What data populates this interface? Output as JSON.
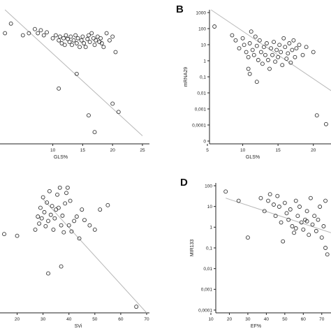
{
  "chart_data": [
    {
      "panel": "",
      "type": "scatter",
      "xlabel": "GLS%",
      "ylabel": "",
      "xlim": [
        0,
        25
      ],
      "ylim": [
        1e-05,
        1000
      ],
      "ylog": true,
      "xticks": [
        "10",
        "15",
        "20",
        "25"
      ],
      "yticks": [],
      "points": [
        [
          0.5,
          100
        ],
        [
          2,
          40
        ],
        [
          3,
          150
        ],
        [
          5,
          30
        ],
        [
          6,
          40
        ],
        [
          7,
          70
        ],
        [
          7.5,
          40
        ],
        [
          8,
          60
        ],
        [
          8.5,
          30
        ],
        [
          9,
          45
        ],
        [
          10,
          20
        ],
        [
          10.5,
          30
        ],
        [
          11,
          15
        ],
        [
          11.2,
          25
        ],
        [
          11.5,
          10
        ],
        [
          11.8,
          20
        ],
        [
          12,
          8
        ],
        [
          12.2,
          30
        ],
        [
          12.5,
          18
        ],
        [
          12.8,
          12
        ],
        [
          13,
          25
        ],
        [
          13.2,
          8
        ],
        [
          13.5,
          15
        ],
        [
          13.8,
          30
        ],
        [
          14,
          10
        ],
        [
          14.2,
          20
        ],
        [
          14.5,
          6
        ],
        [
          14.8,
          15
        ],
        [
          15,
          25
        ],
        [
          15.2,
          10
        ],
        [
          15.5,
          6
        ],
        [
          15.8,
          18
        ],
        [
          16,
          30
        ],
        [
          16.2,
          12
        ],
        [
          16.5,
          40
        ],
        [
          16.8,
          20
        ],
        [
          17,
          8
        ],
        [
          17.2,
          15
        ],
        [
          17.5,
          25
        ],
        [
          17.8,
          12
        ],
        [
          18,
          20
        ],
        [
          18.2,
          10
        ],
        [
          18.5,
          6
        ],
        [
          19,
          40
        ],
        [
          19.5,
          15
        ],
        [
          20,
          25
        ],
        [
          20.5,
          3
        ],
        [
          11,
          0.02
        ],
        [
          14,
          0.15
        ],
        [
          16,
          0.0005
        ],
        [
          17,
          5e-05
        ],
        [
          20,
          0.0025
        ],
        [
          21,
          0.0008
        ]
      ],
      "regression": [
        [
          2,
          1000
        ],
        [
          25,
          3e-05
        ]
      ]
    },
    {
      "panel": "B",
      "type": "scatter",
      "xlabel": "GLS%",
      "ylabel": "mRNA29",
      "xlim": [
        5,
        22.5
      ],
      "ylim": [
        1e-05,
        1000
      ],
      "ylog": true,
      "xticks": [
        "5",
        "10",
        "15",
        "20"
      ],
      "yticks": [
        "1000",
        "100",
        "10",
        "1",
        "0,1",
        "0,01",
        "0,001",
        "0,0001",
        "0"
      ],
      "points": [
        [
          6,
          100
        ],
        [
          8.5,
          30
        ],
        [
          9,
          15
        ],
        [
          9.5,
          5
        ],
        [
          10,
          20
        ],
        [
          10.2,
          8
        ],
        [
          10.5,
          3
        ],
        [
          10.8,
          1.5
        ],
        [
          11,
          10
        ],
        [
          11.2,
          50
        ],
        [
          11.4,
          4
        ],
        [
          11.6,
          2
        ],
        [
          11.8,
          25
        ],
        [
          12,
          7
        ],
        [
          12.2,
          1
        ],
        [
          12.4,
          15
        ],
        [
          12.6,
          3
        ],
        [
          12.8,
          0.6
        ],
        [
          13,
          6
        ],
        [
          13.2,
          2
        ],
        [
          13.4,
          10
        ],
        [
          13.6,
          1
        ],
        [
          13.8,
          0.3
        ],
        [
          14,
          5
        ],
        [
          14.2,
          2
        ],
        [
          14.4,
          12
        ],
        [
          14.6,
          0.8
        ],
        [
          14.8,
          4
        ],
        [
          15,
          1.5
        ],
        [
          15.2,
          8
        ],
        [
          15.4,
          3
        ],
        [
          15.6,
          0.5
        ],
        [
          15.8,
          20
        ],
        [
          16,
          6
        ],
        [
          16.2,
          1.2
        ],
        [
          16.4,
          2.5
        ],
        [
          16.6,
          10
        ],
        [
          16.8,
          0.7
        ],
        [
          17,
          4
        ],
        [
          17.2,
          15
        ],
        [
          17.4,
          1.5
        ],
        [
          17.6,
          5
        ],
        [
          18,
          8
        ],
        [
          18.5,
          2
        ],
        [
          19,
          6
        ],
        [
          20,
          3
        ],
        [
          11,
          0.15
        ],
        [
          12,
          0.05
        ],
        [
          10.8,
          0.3
        ],
        [
          20.5,
          0.0005
        ],
        [
          21.8,
          0.00015
        ]
      ],
      "regression": [
        [
          5.5,
          1000
        ],
        [
          22.5,
          0.015
        ]
      ]
    },
    {
      "panel": "",
      "type": "scatter",
      "xlabel": "SVi",
      "ylabel": "",
      "xlim": [
        15,
        70
      ],
      "ylim": [
        -1,
        14
      ],
      "ylog": false,
      "xticks": [
        "20",
        "30",
        "40",
        "50",
        "60",
        "70"
      ],
      "yticks": [],
      "points": [
        [
          15,
          8
        ],
        [
          20,
          7.8
        ],
        [
          27,
          8.5
        ],
        [
          28,
          10
        ],
        [
          28.5,
          9.2
        ],
        [
          29,
          11
        ],
        [
          29.5,
          9.8
        ],
        [
          30,
          12.2
        ],
        [
          30.5,
          10.5
        ],
        [
          31,
          8.9
        ],
        [
          31.5,
          11.6
        ],
        [
          32,
          9.5
        ],
        [
          32.5,
          12.9
        ],
        [
          33,
          10.2
        ],
        [
          33.5,
          11.2
        ],
        [
          34,
          8.5
        ],
        [
          34.5,
          9.8
        ],
        [
          35,
          10.8
        ],
        [
          35.5,
          12.5
        ],
        [
          36,
          11
        ],
        [
          36.5,
          13.3
        ],
        [
          37,
          9
        ],
        [
          37.5,
          10.1
        ],
        [
          38,
          8.2
        ],
        [
          38.5,
          11.5
        ],
        [
          39,
          12.7
        ],
        [
          39.5,
          13.3
        ],
        [
          40,
          9
        ],
        [
          40.5,
          11.8
        ],
        [
          41,
          8.3
        ],
        [
          42,
          9.5
        ],
        [
          43,
          10
        ],
        [
          44,
          7.5
        ],
        [
          45,
          10.8
        ],
        [
          46,
          9.6
        ],
        [
          48,
          9
        ],
        [
          50,
          8.5
        ],
        [
          52,
          10.8
        ],
        [
          55,
          11.3
        ],
        [
          32,
          3.5
        ],
        [
          37,
          4.3
        ],
        [
          66,
          -0.3
        ]
      ],
      "regression": [
        [
          30,
          12
        ],
        [
          70,
          -1
        ]
      ]
    },
    {
      "panel": "D",
      "type": "scatter",
      "xlabel": "EF%",
      "ylabel": "MIR133",
      "xlim": [
        10,
        75
      ],
      "ylim": [
        0.0001,
        100
      ],
      "ylog": true,
      "xticks": [
        "10",
        "20",
        "30",
        "40",
        "50",
        "60",
        "70"
      ],
      "yticks": [
        "100",
        "10",
        "1",
        "0,1",
        "0,01",
        "0,001",
        "0,0001"
      ],
      "points": [
        [
          18,
          40
        ],
        [
          25,
          15
        ],
        [
          30,
          0.3
        ],
        [
          37,
          20
        ],
        [
          39,
          5
        ],
        [
          41,
          15
        ],
        [
          42,
          30
        ],
        [
          44,
          10
        ],
        [
          45,
          3
        ],
        [
          46,
          25
        ],
        [
          47,
          8
        ],
        [
          48,
          1.5
        ],
        [
          49,
          0.2
        ],
        [
          50,
          12
        ],
        [
          51,
          4
        ],
        [
          52,
          2
        ],
        [
          53,
          6
        ],
        [
          54,
          1
        ],
        [
          55,
          0.5
        ],
        [
          56,
          15
        ],
        [
          57,
          3
        ],
        [
          58,
          8
        ],
        [
          59,
          1.5
        ],
        [
          60,
          0.7
        ],
        [
          61,
          2
        ],
        [
          62,
          5
        ],
        [
          63,
          0.4
        ],
        [
          64,
          20
        ],
        [
          65,
          1.2
        ],
        [
          66,
          3
        ],
        [
          67,
          0.6
        ],
        [
          68,
          2
        ],
        [
          69,
          8
        ],
        [
          70,
          0.3
        ],
        [
          71,
          1
        ],
        [
          72,
          0.1
        ],
        [
          73,
          0.05
        ],
        [
          72,
          15
        ],
        [
          56,
          0.8
        ],
        [
          62,
          1.7
        ]
      ],
      "regression": [
        [
          18,
          20
        ],
        [
          75,
          0.5
        ]
      ]
    }
  ]
}
